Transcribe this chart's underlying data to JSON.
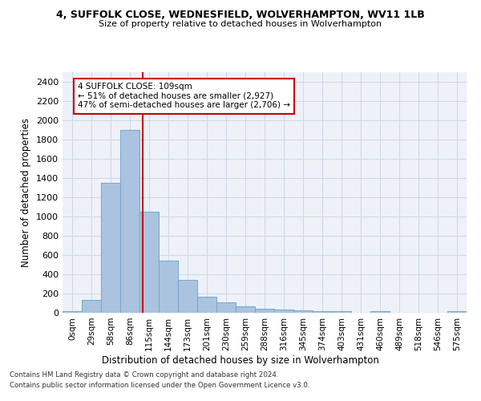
{
  "title": "4, SUFFOLK CLOSE, WEDNESFIELD, WOLVERHAMPTON, WV11 1LB",
  "subtitle": "Size of property relative to detached houses in Wolverhampton",
  "xlabel": "Distribution of detached houses by size in Wolverhampton",
  "ylabel": "Number of detached properties",
  "footer_line1": "Contains HM Land Registry data © Crown copyright and database right 2024.",
  "footer_line2": "Contains public sector information licensed under the Open Government Licence v3.0.",
  "bar_labels": [
    "0sqm",
    "29sqm",
    "58sqm",
    "86sqm",
    "115sqm",
    "144sqm",
    "173sqm",
    "201sqm",
    "230sqm",
    "259sqm",
    "288sqm",
    "316sqm",
    "345sqm",
    "374sqm",
    "403sqm",
    "431sqm",
    "460sqm",
    "489sqm",
    "518sqm",
    "546sqm",
    "575sqm"
  ],
  "bar_heights": [
    20,
    130,
    1350,
    1900,
    1050,
    540,
    340,
    170,
    110,
    65,
    40,
    30,
    25,
    15,
    20,
    0,
    20,
    0,
    0,
    0,
    20
  ],
  "bar_color": "#aac4e0",
  "bar_edgecolor": "#7aaad0",
  "bar_linewidth": 0.8,
  "grid_color": "#d0d8e8",
  "bg_color": "#eef2f8",
  "red_line_x": 3.65,
  "red_line_color": "#cc0000",
  "annotation_text": "4 SUFFOLK CLOSE: 109sqm\n← 51% of detached houses are smaller (2,927)\n47% of semi-detached houses are larger (2,706) →",
  "annotation_box_color": "#cc0000",
  "ylim": [
    0,
    2500
  ],
  "yticks": [
    0,
    200,
    400,
    600,
    800,
    1000,
    1200,
    1400,
    1600,
    1800,
    2000,
    2200,
    2400
  ]
}
